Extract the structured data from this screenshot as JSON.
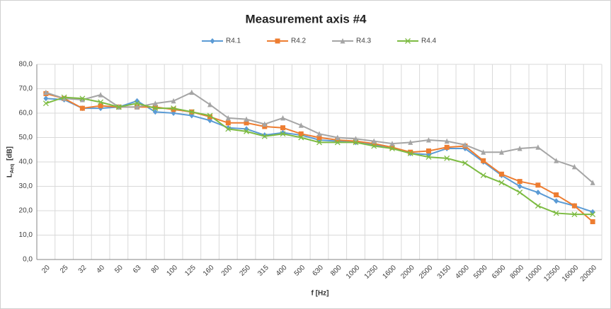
{
  "chart_data": {
    "type": "line",
    "title": "Measurement axis #4",
    "xlabel": "f [Hz]",
    "ylabel": "L",
    "ylabel_sub": "Aeq",
    "ylabel_unit": "[dB]",
    "categories": [
      "20",
      "25",
      "32",
      "40",
      "50",
      "63",
      "80",
      "100",
      "125",
      "160",
      "200",
      "250",
      "315",
      "400",
      "500",
      "630",
      "800",
      "1000",
      "1250",
      "1600",
      "2000",
      "2500",
      "3150",
      "4000",
      "5000",
      "6300",
      "8000",
      "10000",
      "12500",
      "16000",
      "20000"
    ],
    "ylim": [
      0,
      80
    ],
    "yticks": [
      {
        "value": 0,
        "label": "0,0"
      },
      {
        "value": 10,
        "label": "10,0"
      },
      {
        "value": 20,
        "label": "20,0"
      },
      {
        "value": 30,
        "label": "30,0"
      },
      {
        "value": 40,
        "label": "40,0"
      },
      {
        "value": 50,
        "label": "50,0"
      },
      {
        "value": 60,
        "label": "60,0"
      },
      {
        "value": 70,
        "label": "70,0"
      },
      {
        "value": 80,
        "label": "80,0"
      }
    ],
    "grid": true,
    "legend": "top",
    "series": [
      {
        "name": "R4.1",
        "color": "#5b9bd5",
        "marker": "diamond",
        "values": [
          66,
          65.5,
          62,
          62,
          62.5,
          65,
          60.5,
          60,
          59,
          57,
          54,
          53.5,
          51,
          52,
          51,
          49,
          48.5,
          48,
          47,
          46,
          43.5,
          43,
          45.5,
          45.5,
          40,
          34.5,
          30,
          27.5,
          24,
          22,
          19.5
        ]
      },
      {
        "name": "R4.2",
        "color": "#ed7d31",
        "marker": "square",
        "values": [
          68,
          66,
          62,
          63,
          62.5,
          62.5,
          62.5,
          61.5,
          60.5,
          58.5,
          56,
          56,
          54.5,
          54,
          51.5,
          50,
          49,
          48.5,
          47.5,
          46,
          44,
          44.5,
          46,
          46.5,
          40.5,
          35,
          32,
          30.5,
          26.5,
          22,
          15.5
        ]
      },
      {
        "name": "R4.3",
        "color": "#a5a5a5",
        "marker": "triangle",
        "values": [
          68.5,
          66,
          65.5,
          67.5,
          62.5,
          62.5,
          64,
          65,
          68.5,
          63.5,
          58,
          57.5,
          55.5,
          58,
          55,
          51.5,
          50,
          49.5,
          48.5,
          47.5,
          48,
          49,
          48.5,
          47,
          44,
          44,
          45.5,
          46,
          40.5,
          38,
          31.5
        ]
      },
      {
        "name": "R4.4",
        "color": "#7dbb42",
        "marker": "x",
        "values": [
          64,
          66.5,
          66,
          64.5,
          62.5,
          64,
          62,
          62,
          60.5,
          59,
          53.5,
          52.5,
          50.5,
          51.5,
          50,
          48,
          48,
          48,
          46.5,
          45.5,
          43.5,
          42,
          41.5,
          39.5,
          34.5,
          31.5,
          27.5,
          22,
          19,
          18.5,
          18.5
        ]
      }
    ]
  }
}
